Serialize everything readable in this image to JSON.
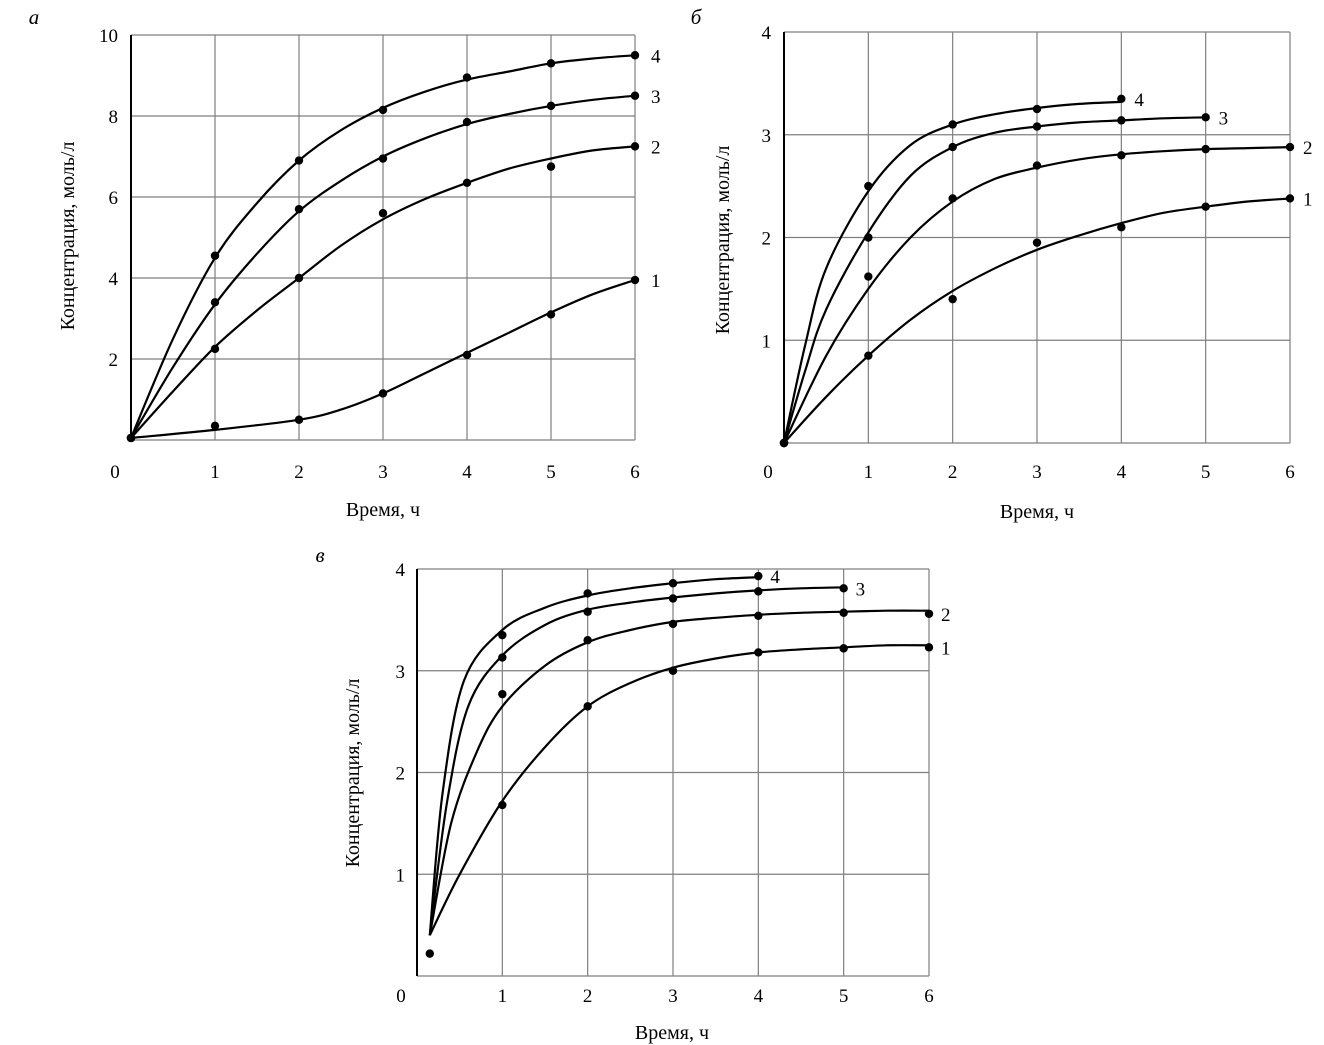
{
  "chart_data": [
    {
      "panel": "а",
      "type": "line",
      "xlabel": "Время, ч",
      "ylabel": "Концентрация, моль/л",
      "xlim": [
        0,
        6
      ],
      "ylim": [
        0,
        10
      ],
      "xticks": [
        "0",
        "1",
        "2",
        "3",
        "4",
        "5",
        "6"
      ],
      "yticks": [
        "2",
        "4",
        "6",
        "8",
        "10"
      ],
      "grid": true,
      "series": [
        {
          "name": "1",
          "points": [
            [
              0,
              0.05
            ],
            [
              1,
              0.35
            ],
            [
              2,
              0.5
            ],
            [
              3,
              1.15
            ],
            [
              4,
              2.1
            ],
            [
              5,
              3.1
            ],
            [
              6,
              3.95
            ]
          ],
          "curve": [
            [
              0,
              0.05
            ],
            [
              1,
              0.25
            ],
            [
              2,
              0.5
            ],
            [
              2.5,
              0.75
            ],
            [
              3,
              1.15
            ],
            [
              3.5,
              1.65
            ],
            [
              4,
              2.15
            ],
            [
              4.5,
              2.65
            ],
            [
              5,
              3.15
            ],
            [
              5.5,
              3.6
            ],
            [
              6,
              3.95
            ]
          ]
        },
        {
          "name": "2",
          "points": [
            [
              0,
              0.05
            ],
            [
              1,
              2.25
            ],
            [
              2,
              4.0
            ],
            [
              3,
              5.6
            ],
            [
              4,
              6.35
            ],
            [
              5,
              6.75
            ],
            [
              6,
              7.25
            ]
          ],
          "curve": [
            [
              0,
              0.05
            ],
            [
              0.5,
              1.2
            ],
            [
              1,
              2.3
            ],
            [
              1.5,
              3.2
            ],
            [
              2,
              4.0
            ],
            [
              2.5,
              4.8
            ],
            [
              3,
              5.45
            ],
            [
              3.5,
              5.95
            ],
            [
              4,
              6.35
            ],
            [
              4.5,
              6.7
            ],
            [
              5,
              6.95
            ],
            [
              5.5,
              7.15
            ],
            [
              6,
              7.25
            ]
          ]
        },
        {
          "name": "3",
          "points": [
            [
              0,
              0.05
            ],
            [
              1,
              3.4
            ],
            [
              2,
              5.7
            ],
            [
              3,
              6.95
            ],
            [
              4,
              7.85
            ],
            [
              5,
              8.25
            ],
            [
              6,
              8.5
            ]
          ],
          "curve": [
            [
              0,
              0.05
            ],
            [
              0.5,
              1.8
            ],
            [
              1,
              3.35
            ],
            [
              1.5,
              4.6
            ],
            [
              2,
              5.65
            ],
            [
              2.5,
              6.4
            ],
            [
              3,
              7.0
            ],
            [
              3.5,
              7.45
            ],
            [
              4,
              7.8
            ],
            [
              4.5,
              8.05
            ],
            [
              5,
              8.25
            ],
            [
              5.5,
              8.4
            ],
            [
              6,
              8.5
            ]
          ]
        },
        {
          "name": "4",
          "points": [
            [
              0,
              0.05
            ],
            [
              1,
              4.55
            ],
            [
              2,
              6.9
            ],
            [
              3,
              8.15
            ],
            [
              4,
              8.95
            ],
            [
              5,
              9.3
            ],
            [
              6,
              9.5
            ]
          ],
          "curve": [
            [
              0,
              0.05
            ],
            [
              0.5,
              2.5
            ],
            [
              1,
              4.5
            ],
            [
              1.5,
              5.85
            ],
            [
              2,
              6.9
            ],
            [
              2.5,
              7.65
            ],
            [
              3,
              8.2
            ],
            [
              3.5,
              8.6
            ],
            [
              4,
              8.9
            ],
            [
              4.5,
              9.1
            ],
            [
              5,
              9.3
            ],
            [
              5.5,
              9.42
            ],
            [
              6,
              9.5
            ]
          ]
        }
      ]
    },
    {
      "panel": "б",
      "type": "line",
      "xlabel": "Время, ч",
      "ylabel": "Концентрация, моль/л",
      "xlim": [
        0,
        6
      ],
      "ylim": [
        0,
        4
      ],
      "xticks": [
        "0",
        "1",
        "2",
        "3",
        "4",
        "5",
        "6"
      ],
      "yticks": [
        "1",
        "2",
        "3",
        "4"
      ],
      "grid": true,
      "series": [
        {
          "name": "1",
          "points": [
            [
              0,
              0
            ],
            [
              1,
              0.85
            ],
            [
              2,
              1.4
            ],
            [
              3,
              1.95
            ],
            [
              4,
              2.1
            ],
            [
              5,
              2.3
            ],
            [
              6,
              2.38
            ]
          ],
          "curve": [
            [
              0,
              0
            ],
            [
              0.5,
              0.45
            ],
            [
              1,
              0.85
            ],
            [
              1.5,
              1.2
            ],
            [
              2,
              1.48
            ],
            [
              2.5,
              1.7
            ],
            [
              3,
              1.88
            ],
            [
              3.5,
              2.02
            ],
            [
              4,
              2.14
            ],
            [
              4.5,
              2.24
            ],
            [
              5,
              2.3
            ],
            [
              5.5,
              2.35
            ],
            [
              6,
              2.38
            ]
          ]
        },
        {
          "name": "2",
          "points": [
            [
              0,
              0
            ],
            [
              1,
              1.62
            ],
            [
              2,
              2.38
            ],
            [
              3,
              2.7
            ],
            [
              4,
              2.8
            ],
            [
              5,
              2.86
            ],
            [
              6,
              2.88
            ]
          ],
          "curve": [
            [
              0,
              0
            ],
            [
              0.5,
              0.85
            ],
            [
              1,
              1.5
            ],
            [
              1.5,
              2.0
            ],
            [
              2,
              2.35
            ],
            [
              2.5,
              2.57
            ],
            [
              3,
              2.68
            ],
            [
              3.5,
              2.76
            ],
            [
              4,
              2.81
            ],
            [
              4.5,
              2.84
            ],
            [
              5,
              2.86
            ],
            [
              5.5,
              2.87
            ],
            [
              6,
              2.88
            ]
          ]
        },
        {
          "name": "3",
          "points": [
            [
              0,
              0
            ],
            [
              1,
              2.0
            ],
            [
              2,
              2.88
            ],
            [
              3,
              3.08
            ],
            [
              4,
              3.14
            ],
            [
              5,
              3.17
            ]
          ],
          "curve": [
            [
              0,
              0
            ],
            [
              0.25,
              0.7
            ],
            [
              0.5,
              1.3
            ],
            [
              1,
              2.05
            ],
            [
              1.5,
              2.6
            ],
            [
              2,
              2.88
            ],
            [
              2.5,
              3.02
            ],
            [
              3,
              3.08
            ],
            [
              3.5,
              3.12
            ],
            [
              4,
              3.14
            ],
            [
              4.5,
              3.16
            ],
            [
              5,
              3.17
            ]
          ]
        },
        {
          "name": "4",
          "points": [
            [
              0,
              0
            ],
            [
              1,
              2.5
            ],
            [
              2,
              3.1
            ],
            [
              3,
              3.25
            ],
            [
              4,
              3.35
            ]
          ],
          "curve": [
            [
              0,
              0
            ],
            [
              0.25,
              0.95
            ],
            [
              0.5,
              1.7
            ],
            [
              1,
              2.45
            ],
            [
              1.5,
              2.9
            ],
            [
              2,
              3.1
            ],
            [
              2.5,
              3.2
            ],
            [
              3,
              3.26
            ],
            [
              3.5,
              3.3
            ],
            [
              4,
              3.32
            ]
          ]
        }
      ]
    },
    {
      "panel": "в",
      "type": "line",
      "xlabel": "Время, ч",
      "ylabel": "Концентрация, моль/л",
      "xlim": [
        0,
        6
      ],
      "ylim": [
        0,
        4
      ],
      "xticks": [
        "0",
        "1",
        "2",
        "3",
        "4",
        "5",
        "6"
      ],
      "yticks": [
        "1",
        "2",
        "3",
        "4"
      ],
      "grid": true,
      "series": [
        {
          "name": "1",
          "points": [
            [
              0.15,
              0.22
            ],
            [
              1,
              1.68
            ],
            [
              2,
              2.65
            ],
            [
              3,
              3.0
            ],
            [
              4,
              3.18
            ],
            [
              5,
              3.22
            ],
            [
              6,
              3.23
            ]
          ],
          "curve": [
            [
              0.15,
              0.4
            ],
            [
              0.5,
              1.0
            ],
            [
              1,
              1.72
            ],
            [
              1.5,
              2.25
            ],
            [
              2,
              2.65
            ],
            [
              2.5,
              2.88
            ],
            [
              3,
              3.03
            ],
            [
              3.5,
              3.12
            ],
            [
              4,
              3.18
            ],
            [
              4.5,
              3.21
            ],
            [
              5,
              3.23
            ],
            [
              5.5,
              3.25
            ],
            [
              6,
              3.25
            ]
          ]
        },
        {
          "name": "2",
          "points": [
            [
              1,
              2.77
            ],
            [
              2,
              3.3
            ],
            [
              3,
              3.46
            ],
            [
              4,
              3.54
            ],
            [
              5,
              3.57
            ],
            [
              6,
              3.56
            ]
          ],
          "curve": [
            [
              0.15,
              0.4
            ],
            [
              0.4,
              1.5
            ],
            [
              0.7,
              2.2
            ],
            [
              1,
              2.65
            ],
            [
              1.5,
              3.05
            ],
            [
              2,
              3.28
            ],
            [
              2.5,
              3.4
            ],
            [
              3,
              3.48
            ],
            [
              3.5,
              3.52
            ],
            [
              4,
              3.55
            ],
            [
              4.5,
              3.57
            ],
            [
              5,
              3.58
            ],
            [
              5.5,
              3.59
            ],
            [
              6,
              3.59
            ]
          ]
        },
        {
          "name": "3",
          "points": [
            [
              1,
              3.13
            ],
            [
              2,
              3.58
            ],
            [
              3,
              3.71
            ],
            [
              4,
              3.78
            ],
            [
              5,
              3.81
            ]
          ],
          "curve": [
            [
              0.15,
              0.4
            ],
            [
              0.35,
              1.7
            ],
            [
              0.6,
              2.65
            ],
            [
              1,
              3.15
            ],
            [
              1.5,
              3.45
            ],
            [
              2,
              3.6
            ],
            [
              2.5,
              3.67
            ],
            [
              3,
              3.72
            ],
            [
              3.5,
              3.76
            ],
            [
              4,
              3.79
            ],
            [
              4.5,
              3.81
            ],
            [
              5,
              3.82
            ]
          ]
        },
        {
          "name": "4",
          "points": [
            [
              1,
              3.35
            ],
            [
              2,
              3.76
            ],
            [
              3,
              3.86
            ],
            [
              4,
              3.93
            ]
          ],
          "curve": [
            [
              0.15,
              0.4
            ],
            [
              0.3,
              1.8
            ],
            [
              0.55,
              2.9
            ],
            [
              1,
              3.4
            ],
            [
              1.5,
              3.62
            ],
            [
              2,
              3.74
            ],
            [
              2.5,
              3.81
            ],
            [
              3,
              3.86
            ],
            [
              3.5,
              3.9
            ],
            [
              4,
              3.92
            ]
          ]
        }
      ]
    }
  ]
}
